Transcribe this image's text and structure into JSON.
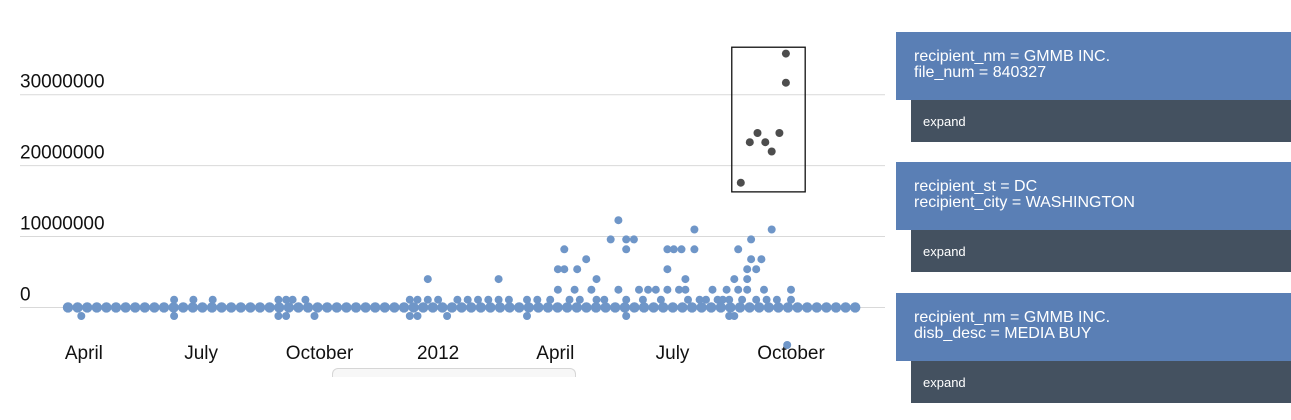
{
  "chart_data": {
    "type": "scatter",
    "title": "",
    "xlabel": "",
    "ylabel": "",
    "ylim": [
      -6000000,
      38000000
    ],
    "y_ticks": [
      {
        "value": 0,
        "label": "0"
      },
      {
        "value": 10000000,
        "label": "10000000"
      },
      {
        "value": 20000000,
        "label": "20000000"
      },
      {
        "value": 30000000,
        "label": "30000000"
      }
    ],
    "x_ticks": [
      {
        "value": "2011-04-01",
        "label": "April"
      },
      {
        "value": "2011-07-01",
        "label": "July"
      },
      {
        "value": "2011-10-01",
        "label": "October"
      },
      {
        "value": "2012-01-01",
        "label": "2012"
      },
      {
        "value": "2012-04-01",
        "label": "April"
      },
      {
        "value": "2012-07-01",
        "label": "July"
      },
      {
        "value": "2012-10-01",
        "label": "October"
      }
    ],
    "xlim": [
      "2011-03-15",
      "2012-11-22"
    ],
    "grid": true,
    "colors": {
      "normal": "#6f96c8",
      "selected": "#4d4d4d",
      "grid": "#d9d9d9"
    },
    "selection_box": {
      "x": [
        "2012-08-16",
        "2012-10-12"
      ],
      "y": [
        16300000,
        36700000
      ]
    },
    "series": [
      {
        "status": "selected",
        "points": [
          {
            "x": "2012-08-23",
            "y": 17600000
          },
          {
            "x": "2012-08-30",
            "y": 23300000
          },
          {
            "x": "2012-09-05",
            "y": 24600000
          },
          {
            "x": "2012-09-11",
            "y": 23300000
          },
          {
            "x": "2012-09-16",
            "y": 22000000
          },
          {
            "x": "2012-09-22",
            "y": 24600000
          },
          {
            "x": "2012-09-27",
            "y": 31700000
          },
          {
            "x": "2012-09-27",
            "y": 35800000
          }
        ]
      },
      {
        "status": "normal",
        "points": [
          {
            "x": "2011-03-30",
            "y": -1200000
          },
          {
            "x": "2011-06-10",
            "y": 1100000
          },
          {
            "x": "2011-06-10",
            "y": -1200000
          },
          {
            "x": "2011-06-25",
            "y": 1100000
          },
          {
            "x": "2011-07-10",
            "y": 1100000
          },
          {
            "x": "2011-08-30",
            "y": 1100000
          },
          {
            "x": "2011-09-05",
            "y": 1100000
          },
          {
            "x": "2011-09-10",
            "y": 1100000
          },
          {
            "x": "2011-08-30",
            "y": -1200000
          },
          {
            "x": "2011-09-05",
            "y": -1200000
          },
          {
            "x": "2011-09-20",
            "y": 1100000
          },
          {
            "x": "2011-09-27",
            "y": -1200000
          },
          {
            "x": "2011-12-10",
            "y": 1100000
          },
          {
            "x": "2011-12-16",
            "y": 1100000
          },
          {
            "x": "2011-12-10",
            "y": -1200000
          },
          {
            "x": "2011-12-16",
            "y": -1200000
          },
          {
            "x": "2011-12-24",
            "y": 4000000
          },
          {
            "x": "2011-12-24",
            "y": 1100000
          },
          {
            "x": "2012-01-01",
            "y": 1100000
          },
          {
            "x": "2012-01-08",
            "y": -1200000
          },
          {
            "x": "2012-01-16",
            "y": 1100000
          },
          {
            "x": "2012-01-24",
            "y": 1100000
          },
          {
            "x": "2012-02-01",
            "y": 1100000
          },
          {
            "x": "2012-02-09",
            "y": 1100000
          },
          {
            "x": "2012-02-17",
            "y": 4000000
          },
          {
            "x": "2012-02-17",
            "y": 1100000
          },
          {
            "x": "2012-02-25",
            "y": 1100000
          },
          {
            "x": "2012-03-10",
            "y": 1100000
          },
          {
            "x": "2012-03-18",
            "y": 1100000
          },
          {
            "x": "2012-03-10",
            "y": -1200000
          },
          {
            "x": "2012-03-28",
            "y": 1100000
          },
          {
            "x": "2012-04-03",
            "y": 2500000
          },
          {
            "x": "2012-04-03",
            "y": 5400000
          },
          {
            "x": "2012-04-08",
            "y": 5400000
          },
          {
            "x": "2012-04-08",
            "y": 8200000
          },
          {
            "x": "2012-04-12",
            "y": 1100000
          },
          {
            "x": "2012-04-16",
            "y": 2500000
          },
          {
            "x": "2012-04-18",
            "y": 5400000
          },
          {
            "x": "2012-04-20",
            "y": 1100000
          },
          {
            "x": "2012-04-25",
            "y": 6800000
          },
          {
            "x": "2012-04-29",
            "y": 2500000
          },
          {
            "x": "2012-05-03",
            "y": 4000000
          },
          {
            "x": "2012-05-03",
            "y": 1100000
          },
          {
            "x": "2012-05-09",
            "y": 1100000
          },
          {
            "x": "2012-05-14",
            "y": 9600000
          },
          {
            "x": "2012-05-20",
            "y": 12300000
          },
          {
            "x": "2012-05-20",
            "y": 2500000
          },
          {
            "x": "2012-05-26",
            "y": 9600000
          },
          {
            "x": "2012-05-26",
            "y": 8200000
          },
          {
            "x": "2012-05-26",
            "y": 1100000
          },
          {
            "x": "2012-05-26",
            "y": -1200000
          },
          {
            "x": "2012-06-01",
            "y": 9600000
          },
          {
            "x": "2012-06-05",
            "y": 2500000
          },
          {
            "x": "2012-06-08",
            "y": 1100000
          },
          {
            "x": "2012-06-12",
            "y": 2500000
          },
          {
            "x": "2012-06-18",
            "y": 2500000
          },
          {
            "x": "2012-06-22",
            "y": 1100000
          },
          {
            "x": "2012-06-27",
            "y": 8200000
          },
          {
            "x": "2012-06-27",
            "y": 5400000
          },
          {
            "x": "2012-06-27",
            "y": 2500000
          },
          {
            "x": "2012-07-02",
            "y": 8200000
          },
          {
            "x": "2012-07-06",
            "y": 2500000
          },
          {
            "x": "2012-07-08",
            "y": 8200000
          },
          {
            "x": "2012-07-11",
            "y": 4000000
          },
          {
            "x": "2012-07-11",
            "y": 2500000
          },
          {
            "x": "2012-07-13",
            "y": 1100000
          },
          {
            "x": "2012-07-18",
            "y": 11000000
          },
          {
            "x": "2012-07-18",
            "y": 8200000
          },
          {
            "x": "2012-07-22",
            "y": 1100000
          },
          {
            "x": "2012-07-27",
            "y": 1100000
          },
          {
            "x": "2012-08-01",
            "y": 2500000
          },
          {
            "x": "2012-08-05",
            "y": 1100000
          },
          {
            "x": "2012-08-09",
            "y": 1100000
          },
          {
            "x": "2012-08-12",
            "y": 2500000
          },
          {
            "x": "2012-08-14",
            "y": 1100000
          },
          {
            "x": "2012-08-14",
            "y": -1200000
          },
          {
            "x": "2012-08-18",
            "y": 4000000
          },
          {
            "x": "2012-08-18",
            "y": -1200000
          },
          {
            "x": "2012-08-21",
            "y": 8200000
          },
          {
            "x": "2012-08-21",
            "y": 2500000
          },
          {
            "x": "2012-08-24",
            "y": 1100000
          },
          {
            "x": "2012-08-28",
            "y": 5400000
          },
          {
            "x": "2012-08-28",
            "y": 4000000
          },
          {
            "x": "2012-08-28",
            "y": 2500000
          },
          {
            "x": "2012-08-31",
            "y": 9600000
          },
          {
            "x": "2012-08-31",
            "y": 6800000
          },
          {
            "x": "2012-09-04",
            "y": 5400000
          },
          {
            "x": "2012-09-04",
            "y": 1100000
          },
          {
            "x": "2012-09-08",
            "y": 6800000
          },
          {
            "x": "2012-09-10",
            "y": 2500000
          },
          {
            "x": "2012-09-12",
            "y": 1100000
          },
          {
            "x": "2012-09-16",
            "y": 11000000
          },
          {
            "x": "2012-09-20",
            "y": 1100000
          },
          {
            "x": "2012-10-01",
            "y": 2500000
          },
          {
            "x": "2012-10-01",
            "y": 1100000
          },
          {
            "x": "2012-09-28",
            "y": -5300000
          }
        ]
      }
    ]
  },
  "panels": [
    {
      "line1": "recipient_nm = GMMB INC.",
      "line2": "file_num = 840327",
      "button": "expand"
    },
    {
      "line1": "recipient_st = DC",
      "line2": "recipient_city = WASHINGTON",
      "button": "expand"
    },
    {
      "line1": "recipient_nm = GMMB INC.",
      "line2": "disb_desc = MEDIA BUY",
      "button": "expand"
    }
  ]
}
